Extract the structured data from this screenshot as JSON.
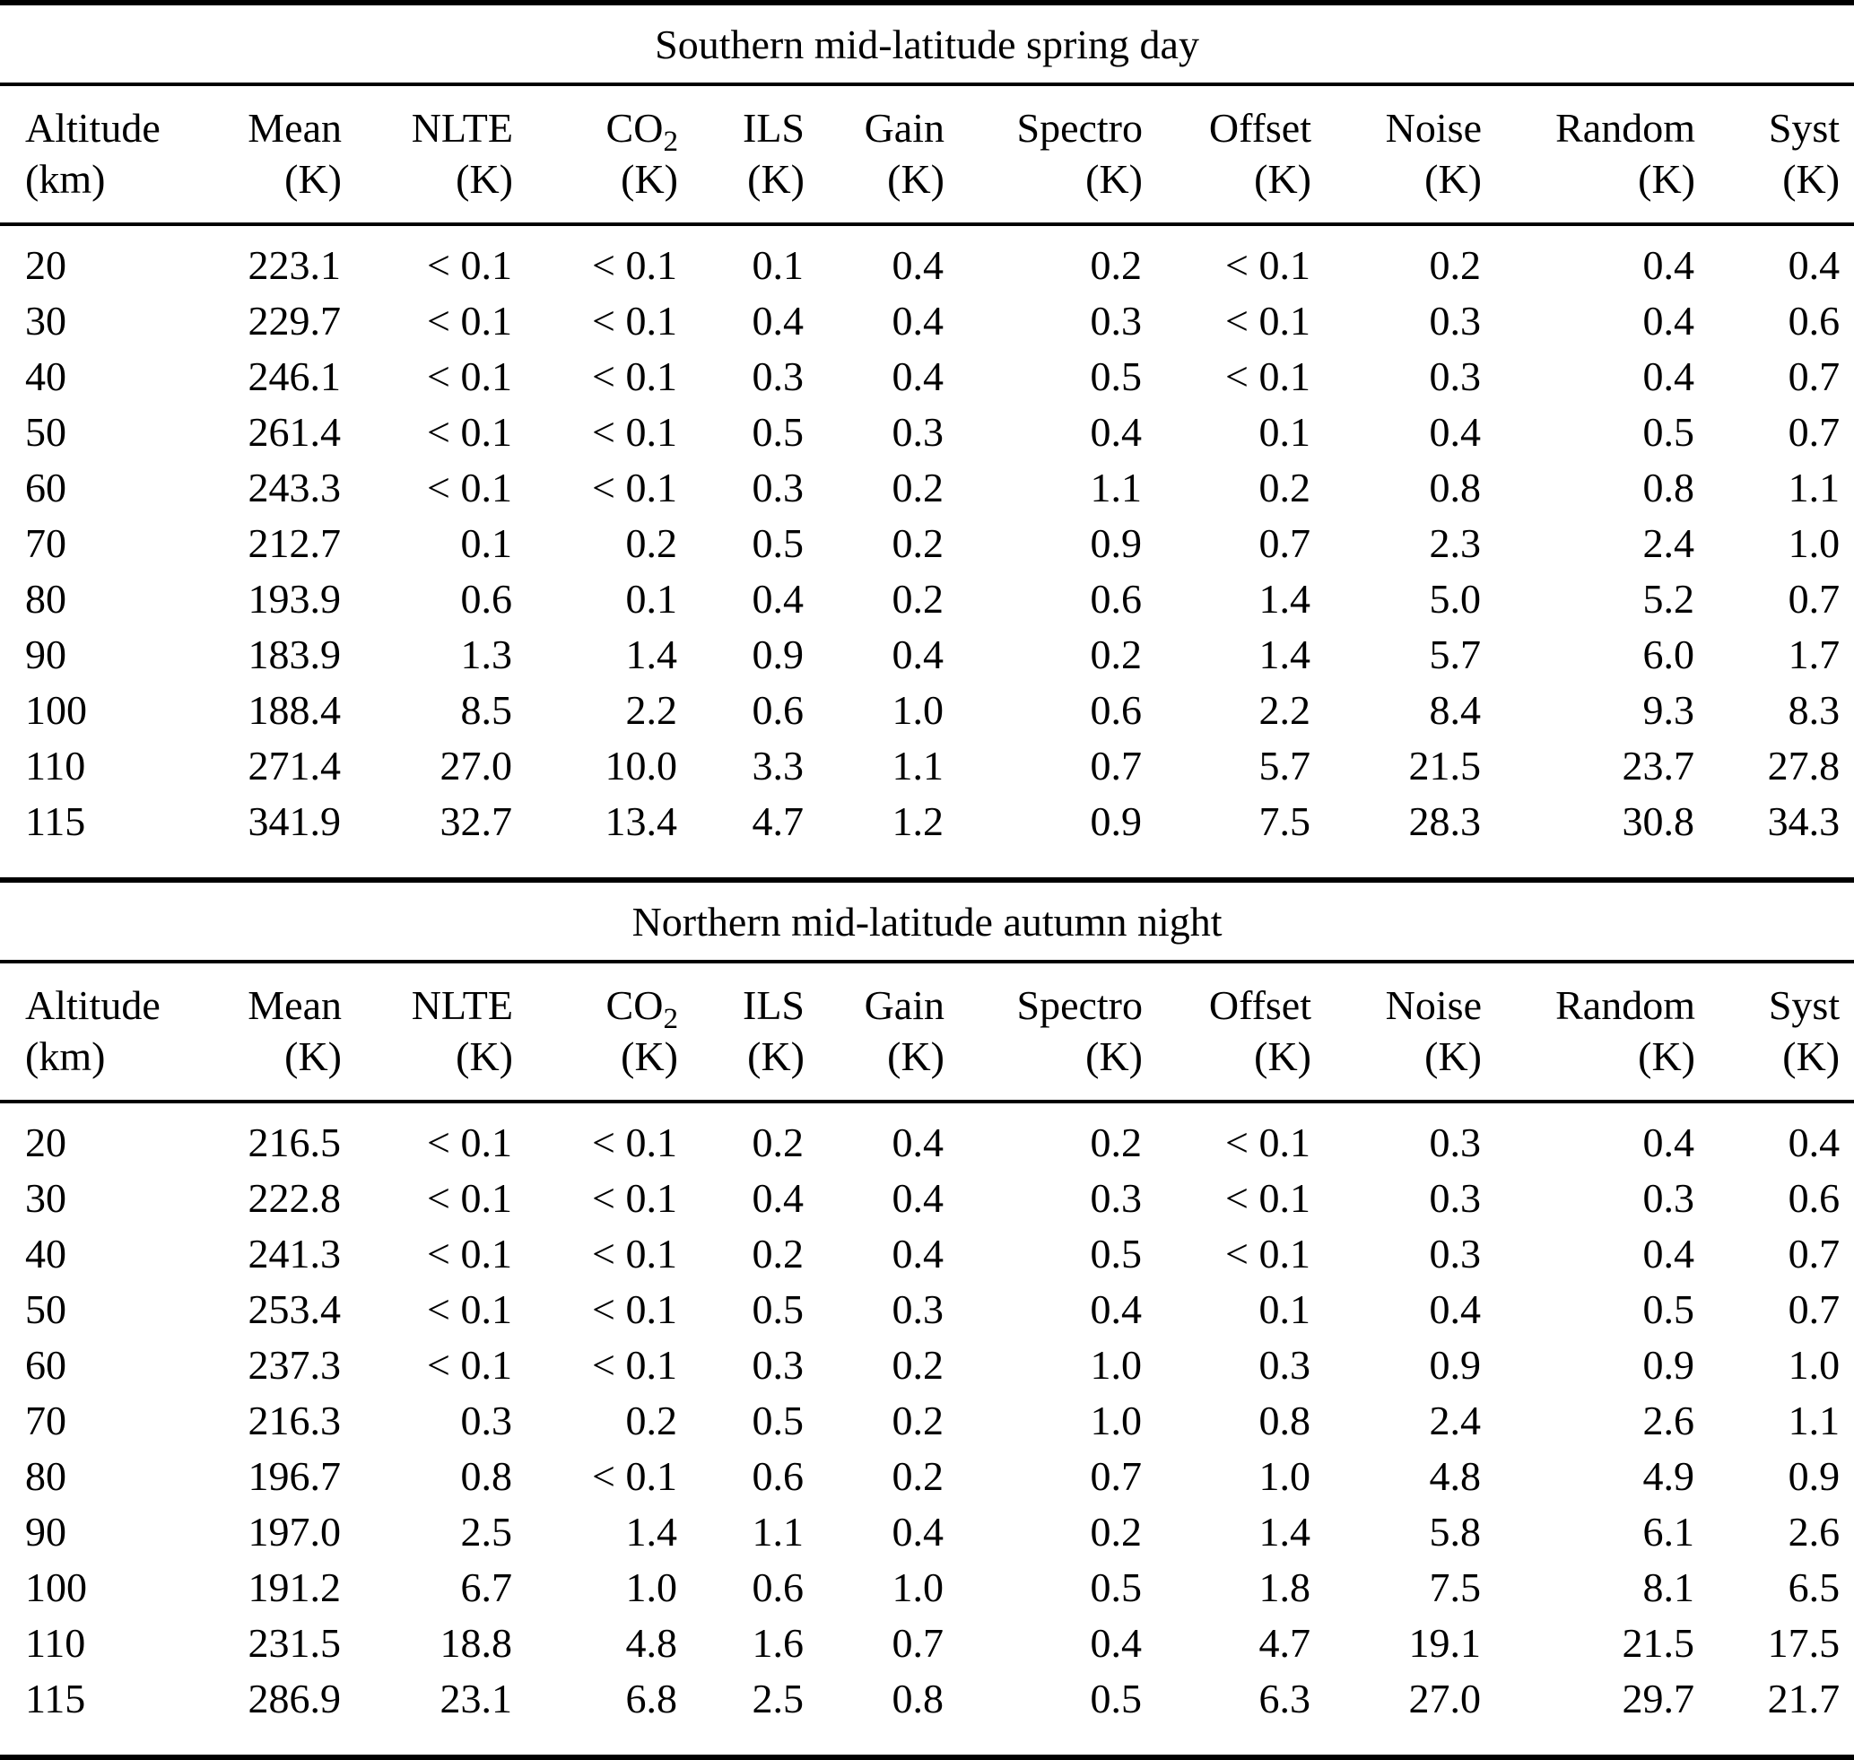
{
  "tables": [
    {
      "title": "Southern mid-latitude spring day",
      "columns": [
        {
          "label": "Altitude",
          "unit": "(km)"
        },
        {
          "label": "Mean",
          "unit": "(K)"
        },
        {
          "label": "NLTE",
          "unit": "(K)"
        },
        {
          "label": "CO",
          "sub": "2",
          "unit": "(K)"
        },
        {
          "label": "ILS",
          "unit": "(K)"
        },
        {
          "label": "Gain",
          "unit": "(K)"
        },
        {
          "label": "Spectro",
          "unit": "(K)"
        },
        {
          "label": "Offset",
          "unit": "(K)"
        },
        {
          "label": "Noise",
          "unit": "(K)"
        },
        {
          "label": "Random",
          "unit": "(K)"
        },
        {
          "label": "Syst",
          "unit": "(K)"
        }
      ],
      "rows": [
        [
          "20",
          "223.1",
          "< 0.1",
          "< 0.1",
          "0.1",
          "0.4",
          "0.2",
          "< 0.1",
          "0.2",
          "0.4",
          "0.4"
        ],
        [
          "30",
          "229.7",
          "< 0.1",
          "< 0.1",
          "0.4",
          "0.4",
          "0.3",
          "< 0.1",
          "0.3",
          "0.4",
          "0.6"
        ],
        [
          "40",
          "246.1",
          "< 0.1",
          "< 0.1",
          "0.3",
          "0.4",
          "0.5",
          "< 0.1",
          "0.3",
          "0.4",
          "0.7"
        ],
        [
          "50",
          "261.4",
          "< 0.1",
          "< 0.1",
          "0.5",
          "0.3",
          "0.4",
          "0.1",
          "0.4",
          "0.5",
          "0.7"
        ],
        [
          "60",
          "243.3",
          "< 0.1",
          "< 0.1",
          "0.3",
          "0.2",
          "1.1",
          "0.2",
          "0.8",
          "0.8",
          "1.1"
        ],
        [
          "70",
          "212.7",
          "0.1",
          "0.2",
          "0.5",
          "0.2",
          "0.9",
          "0.7",
          "2.3",
          "2.4",
          "1.0"
        ],
        [
          "80",
          "193.9",
          "0.6",
          "0.1",
          "0.4",
          "0.2",
          "0.6",
          "1.4",
          "5.0",
          "5.2",
          "0.7"
        ],
        [
          "90",
          "183.9",
          "1.3",
          "1.4",
          "0.9",
          "0.4",
          "0.2",
          "1.4",
          "5.7",
          "6.0",
          "1.7"
        ],
        [
          "100",
          "188.4",
          "8.5",
          "2.2",
          "0.6",
          "1.0",
          "0.6",
          "2.2",
          "8.4",
          "9.3",
          "8.3"
        ],
        [
          "110",
          "271.4",
          "27.0",
          "10.0",
          "3.3",
          "1.1",
          "0.7",
          "5.7",
          "21.5",
          "23.7",
          "27.8"
        ],
        [
          "115",
          "341.9",
          "32.7",
          "13.4",
          "4.7",
          "1.2",
          "0.9",
          "7.5",
          "28.3",
          "30.8",
          "34.3"
        ]
      ]
    },
    {
      "title": "Northern mid-latitude autumn night",
      "columns": [
        {
          "label": "Altitude",
          "unit": "(km)"
        },
        {
          "label": "Mean",
          "unit": "(K)"
        },
        {
          "label": "NLTE",
          "unit": "(K)"
        },
        {
          "label": "CO",
          "sub": "2",
          "unit": "(K)"
        },
        {
          "label": "ILS",
          "unit": "(K)"
        },
        {
          "label": "Gain",
          "unit": "(K)"
        },
        {
          "label": "Spectro",
          "unit": "(K)"
        },
        {
          "label": "Offset",
          "unit": "(K)"
        },
        {
          "label": "Noise",
          "unit": "(K)"
        },
        {
          "label": "Random",
          "unit": "(K)"
        },
        {
          "label": "Syst",
          "unit": "(K)"
        }
      ],
      "rows": [
        [
          "20",
          "216.5",
          "< 0.1",
          "< 0.1",
          "0.2",
          "0.4",
          "0.2",
          "< 0.1",
          "0.3",
          "0.4",
          "0.4"
        ],
        [
          "30",
          "222.8",
          "< 0.1",
          "< 0.1",
          "0.4",
          "0.4",
          "0.3",
          "< 0.1",
          "0.3",
          "0.3",
          "0.6"
        ],
        [
          "40",
          "241.3",
          "< 0.1",
          "< 0.1",
          "0.2",
          "0.4",
          "0.5",
          "< 0.1",
          "0.3",
          "0.4",
          "0.7"
        ],
        [
          "50",
          "253.4",
          "< 0.1",
          "< 0.1",
          "0.5",
          "0.3",
          "0.4",
          "0.1",
          "0.4",
          "0.5",
          "0.7"
        ],
        [
          "60",
          "237.3",
          "< 0.1",
          "< 0.1",
          "0.3",
          "0.2",
          "1.0",
          "0.3",
          "0.9",
          "0.9",
          "1.0"
        ],
        [
          "70",
          "216.3",
          "0.3",
          "0.2",
          "0.5",
          "0.2",
          "1.0",
          "0.8",
          "2.4",
          "2.6",
          "1.1"
        ],
        [
          "80",
          "196.7",
          "0.8",
          "< 0.1",
          "0.6",
          "0.2",
          "0.7",
          "1.0",
          "4.8",
          "4.9",
          "0.9"
        ],
        [
          "90",
          "197.0",
          "2.5",
          "1.4",
          "1.1",
          "0.4",
          "0.2",
          "1.4",
          "5.8",
          "6.1",
          "2.6"
        ],
        [
          "100",
          "191.2",
          "6.7",
          "1.0",
          "0.6",
          "1.0",
          "0.5",
          "1.8",
          "7.5",
          "8.1",
          "6.5"
        ],
        [
          "110",
          "231.5",
          "18.8",
          "4.8",
          "1.6",
          "0.7",
          "0.4",
          "4.7",
          "19.1",
          "21.5",
          "17.5"
        ],
        [
          "115",
          "286.9",
          "23.1",
          "6.8",
          "2.5",
          "0.8",
          "0.5",
          "6.3",
          "27.0",
          "29.7",
          "21.7"
        ]
      ]
    }
  ]
}
